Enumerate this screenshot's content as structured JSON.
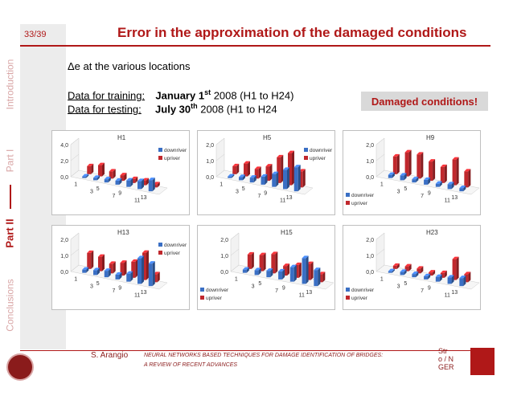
{
  "slide": {
    "page_number": "33/39",
    "title": "Error in the approximation of the damaged conditions"
  },
  "sidebar": {
    "sections": [
      {
        "label": "Introduction",
        "active": false
      },
      {
        "label": "Part I",
        "active": false
      },
      {
        "label": "Part II",
        "active": true
      },
      {
        "label": "Conclusions",
        "active": false
      }
    ]
  },
  "content": {
    "heading": "Δe at the various locations",
    "training_label": "Data for training:",
    "training_date_bold": "January 1",
    "training_sup": "st",
    "training_rest": "2008 (H1 to H24)",
    "testing_label": "Data for testing:",
    "testing_date_bold": "July 30",
    "testing_sup": "th",
    "testing_rest": "2008 (H1 to H24",
    "badge": "Damaged conditions!"
  },
  "colors": {
    "accent": "#b01818",
    "downriver": "#3a6fc4",
    "upriver": "#c0282d"
  },
  "chart_data": [
    {
      "type": "bar",
      "title": "H1",
      "categories": [
        "1",
        "3",
        "5",
        "7",
        "9",
        "11",
        "13"
      ],
      "yticks": [
        "0,0",
        "2,0",
        "4,0"
      ],
      "ylim": [
        0,
        4
      ],
      "series": [
        {
          "name": "downriver",
          "values": [
            0.2,
            0.3,
            0.4,
            0.5,
            0.8,
            1.0,
            1.4
          ]
        },
        {
          "name": "upriver",
          "values": [
            1.0,
            1.4,
            0.9,
            0.7,
            0.5,
            0.6,
            0.4
          ]
        }
      ],
      "legend": "right"
    },
    {
      "type": "bar",
      "title": "H5",
      "categories": [
        "1",
        "3",
        "5",
        "7",
        "9",
        "11",
        "13"
      ],
      "yticks": [
        "0,0",
        "1,0",
        "2,0"
      ],
      "ylim": [
        0,
        2
      ],
      "series": [
        {
          "name": "downriver",
          "values": [
            0.1,
            0.2,
            0.3,
            0.5,
            0.8,
            1.2,
            1.5
          ]
        },
        {
          "name": "upriver",
          "values": [
            0.5,
            0.8,
            0.6,
            0.9,
            1.6,
            2.0,
            1.0
          ]
        }
      ],
      "legend": "right"
    },
    {
      "type": "bar",
      "title": "H9",
      "categories": [
        "1",
        "3",
        "5",
        "7",
        "9",
        "11",
        "13"
      ],
      "yticks": [
        "0,0",
        "1,0",
        "2,0"
      ],
      "ylim": [
        0,
        2
      ],
      "series": [
        {
          "name": "downriver",
          "values": [
            0.2,
            0.3,
            0.2,
            0.3,
            0.2,
            0.3,
            0.2
          ]
        },
        {
          "name": "upriver",
          "values": [
            1.1,
            1.5,
            1.5,
            1.2,
            1.0,
            1.6,
            1.0
          ]
        }
      ],
      "legend": "left"
    },
    {
      "type": "bar",
      "title": "H13",
      "categories": [
        "1",
        "3",
        "5",
        "7",
        "9",
        "11",
        "13"
      ],
      "yticks": [
        "0,0",
        "1,0",
        "2,0"
      ],
      "ylim": [
        0,
        2
      ],
      "series": [
        {
          "name": "downriver",
          "values": [
            0.2,
            0.3,
            0.4,
            0.3,
            0.5,
            1.6,
            1.4
          ]
        },
        {
          "name": "upriver",
          "values": [
            1.0,
            0.9,
            0.6,
            0.8,
            1.0,
            1.7,
            0.5
          ]
        }
      ],
      "legend": "right"
    },
    {
      "type": "bar",
      "title": "H15",
      "categories": [
        "1",
        "3",
        "5",
        "7",
        "9",
        "11",
        "13"
      ],
      "yticks": [
        "0,0",
        "1,0",
        "2,0"
      ],
      "ylim": [
        0,
        2
      ],
      "series": [
        {
          "name": "downriver",
          "values": [
            0.2,
            0.3,
            0.4,
            0.5,
            0.9,
            1.6,
            1.0
          ]
        },
        {
          "name": "upriver",
          "values": [
            0.9,
            1.0,
            1.2,
            0.6,
            0.8,
            1.0,
            0.5
          ]
        }
      ],
      "legend": "left"
    },
    {
      "type": "bar",
      "title": "H23",
      "categories": [
        "1",
        "3",
        "5",
        "7",
        "9",
        "11",
        "13"
      ],
      "yticks": [
        "0,0",
        "1,0",
        "2,0"
      ],
      "ylim": [
        0,
        2
      ],
      "series": [
        {
          "name": "downriver",
          "values": [
            0.1,
            0.2,
            0.2,
            0.2,
            0.3,
            0.4,
            0.5
          ]
        },
        {
          "name": "upriver",
          "values": [
            0.2,
            0.3,
            0.3,
            0.2,
            0.3,
            1.3,
            0.5
          ]
        }
      ],
      "legend": "left"
    }
  ],
  "footer": {
    "author": "S. Arangio",
    "subtitle_line1": "NEURAL NETWORKS BASED TECHNIQUES FOR DAMAGE IDENTIFICATION OF BRIDGES:",
    "subtitle_line2": "A REVIEW OF RECENT ADVANCES",
    "logo_text": [
      "Str",
      "o",
      "N",
      "GER"
    ]
  }
}
